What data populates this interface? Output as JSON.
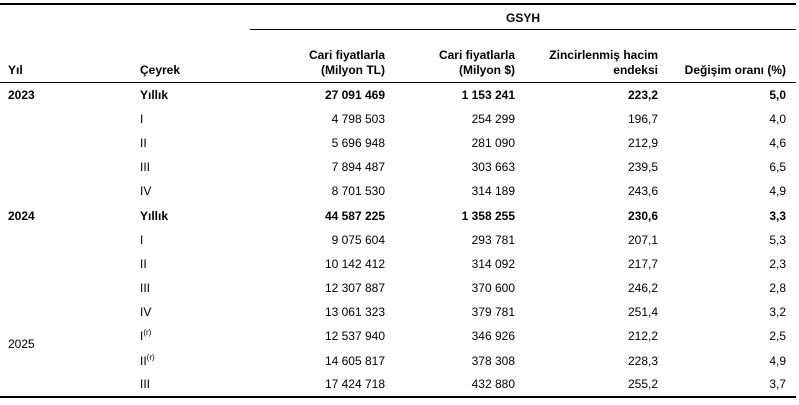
{
  "table": {
    "group_header": "GSYH",
    "columns": {
      "yil": "Yıl",
      "ceyrek": "Çeyrek",
      "tl_line1": "Cari fiyatlarla",
      "tl_line2": "(Milyon TL)",
      "usd_line1": "Cari fiyatlarla",
      "usd_line2": "(Milyon $)",
      "endeks_line1": "Zincirlenmiş hacim",
      "endeks_line2": "endeksi",
      "degisim": "Değişim oranı (%)"
    },
    "rows": [
      {
        "year": "2023",
        "quarter": "Yıllık",
        "sup": "",
        "tl": "27 091 469",
        "usd": "1 153 241",
        "endeks": "223,2",
        "degisim": "5,0",
        "bold": true
      },
      {
        "year": "",
        "quarter": "I",
        "sup": "",
        "tl": "4 798 503",
        "usd": "254 299",
        "endeks": "196,7",
        "degisim": "4,0",
        "bold": false
      },
      {
        "year": "",
        "quarter": "II",
        "sup": "",
        "tl": "5 696 948",
        "usd": "281 090",
        "endeks": "212,9",
        "degisim": "4,6",
        "bold": false
      },
      {
        "year": "",
        "quarter": "III",
        "sup": "",
        "tl": "7 894 487",
        "usd": "303 663",
        "endeks": "239,5",
        "degisim": "6,5",
        "bold": false
      },
      {
        "year": "",
        "quarter": "IV",
        "sup": "",
        "tl": "8 701 530",
        "usd": "314 189",
        "endeks": "243,6",
        "degisim": "4,9",
        "bold": false
      },
      {
        "year": "2024",
        "quarter": "Yıllık",
        "sup": "",
        "tl": "44 587 225",
        "usd": "1 358 255",
        "endeks": "230,6",
        "degisim": "3,3",
        "bold": true
      },
      {
        "year": "",
        "quarter": "I",
        "sup": "",
        "tl": "9 075 604",
        "usd": "293 781",
        "endeks": "207,1",
        "degisim": "5,3",
        "bold": false
      },
      {
        "year": "",
        "quarter": "II",
        "sup": "",
        "tl": "10 142 412",
        "usd": "314 092",
        "endeks": "217,7",
        "degisim": "2,3",
        "bold": false
      },
      {
        "year": "",
        "quarter": "III",
        "sup": "",
        "tl": "12 307 887",
        "usd": "370 600",
        "endeks": "246,2",
        "degisim": "2,8",
        "bold": false
      },
      {
        "year": "",
        "quarter": "IV",
        "sup": "",
        "tl": "13 061 323",
        "usd": "379 781",
        "endeks": "251,4",
        "degisim": "3,2",
        "bold": false
      },
      {
        "year": "2025",
        "quarter": "I",
        "sup": "(r)",
        "tl": "12 537 940",
        "usd": "346 926",
        "endeks": "212,2",
        "degisim": "2,5",
        "bold": false
      },
      {
        "year": "",
        "quarter": "II",
        "sup": "(r)",
        "tl": "14 605 817",
        "usd": "378 308",
        "endeks": "228,3",
        "degisim": "4,9",
        "bold": false
      },
      {
        "year": "",
        "quarter": "III",
        "sup": "",
        "tl": "17 424 718",
        "usd": "432 880",
        "endeks": "255,2",
        "degisim": "3,7",
        "bold": false
      }
    ]
  }
}
